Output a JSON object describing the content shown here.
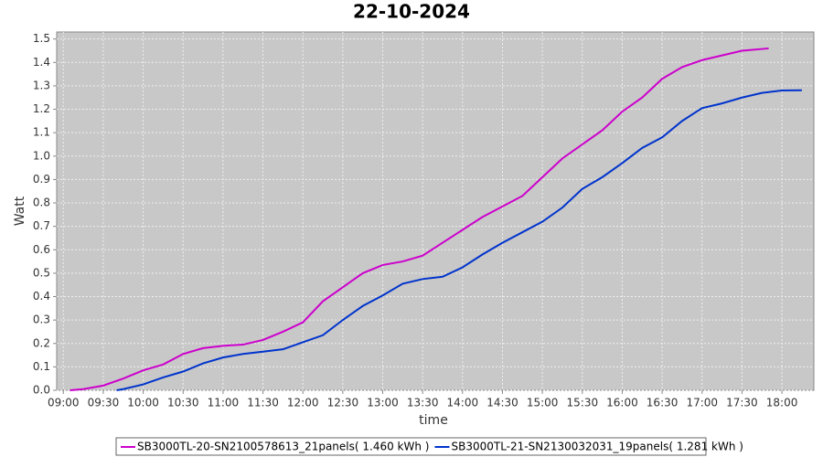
{
  "chart_data": {
    "type": "line",
    "title": "22-10-2024",
    "x_label": "time",
    "y_label": "Watt",
    "xlim": [
      "08:55",
      "18:24"
    ],
    "xticks": [
      "09:00",
      "09:30",
      "10:00",
      "10:30",
      "11:00",
      "11:30",
      "12:00",
      "12:30",
      "13:00",
      "13:30",
      "14:00",
      "14:30",
      "15:00",
      "15:30",
      "16:00",
      "16:30",
      "17:00",
      "17:30",
      "18:00"
    ],
    "ylim": [
      0,
      1.53
    ],
    "yticks": [
      {
        "value": 0,
        "label": "0.0"
      },
      0.1,
      0.2,
      0.3,
      0.4,
      0.5,
      0.6,
      0.7,
      0.8,
      0.9,
      {
        "value": 1,
        "label": "1.0"
      },
      1.1,
      1.2,
      1.3,
      1.4,
      1.5
    ],
    "grid": true,
    "series": [
      {
        "name": "SB3000TL-20-SN2100578613_21panels( 1.460 kWh )",
        "color": "#cc00cc",
        "x": [
          "09:05",
          "09:15",
          "09:30",
          "09:45",
          "10:00",
          "10:15",
          "10:30",
          "10:45",
          "11:00",
          "11:15",
          "11:30",
          "11:45",
          "12:00",
          "12:15",
          "12:30",
          "12:45",
          "13:00",
          "13:15",
          "13:30",
          "13:45",
          "14:00",
          "14:15",
          "14:30",
          "14:45",
          "15:00",
          "15:15",
          "15:30",
          "15:45",
          "16:00",
          "16:15",
          "16:30",
          "16:45",
          "17:00",
          "17:15",
          "17:30",
          "17:50"
        ],
        "values": [
          0,
          0.005,
          0.02,
          0.05,
          0.085,
          0.11,
          0.155,
          0.18,
          0.19,
          0.195,
          0.215,
          0.25,
          0.29,
          0.38,
          0.44,
          0.5,
          0.535,
          0.55,
          0.575,
          0.63,
          0.685,
          0.74,
          0.785,
          0.83,
          0.91,
          0.99,
          1.05,
          1.11,
          1.19,
          1.25,
          1.33,
          1.38,
          1.41,
          1.43,
          1.45,
          1.46
        ]
      },
      {
        "name": "SB3000TL-21-SN2130032031_19panels( 1.281 kWh )",
        "color": "#0033cc",
        "x": [
          "09:40",
          "09:45",
          "10:00",
          "10:15",
          "10:30",
          "10:45",
          "11:00",
          "11:15",
          "11:30",
          "11:45",
          "12:00",
          "12:15",
          "12:30",
          "12:45",
          "13:00",
          "13:15",
          "13:30",
          "13:45",
          "14:00",
          "14:15",
          "14:30",
          "14:45",
          "15:00",
          "15:15",
          "15:30",
          "15:45",
          "16:00",
          "16:15",
          "16:30",
          "16:45",
          "17:00",
          "17:15",
          "17:30",
          "17:45",
          "18:00",
          "18:15"
        ],
        "values": [
          0,
          0.005,
          0.025,
          0.055,
          0.08,
          0.115,
          0.14,
          0.155,
          0.165,
          0.175,
          0.205,
          0.235,
          0.3,
          0.36,
          0.405,
          0.455,
          0.475,
          0.485,
          0.525,
          0.58,
          0.63,
          0.675,
          0.72,
          0.78,
          0.86,
          0.91,
          0.97,
          1.035,
          1.08,
          1.15,
          1.205,
          1.225,
          1.25,
          1.27,
          1.28,
          1.281
        ]
      }
    ]
  }
}
